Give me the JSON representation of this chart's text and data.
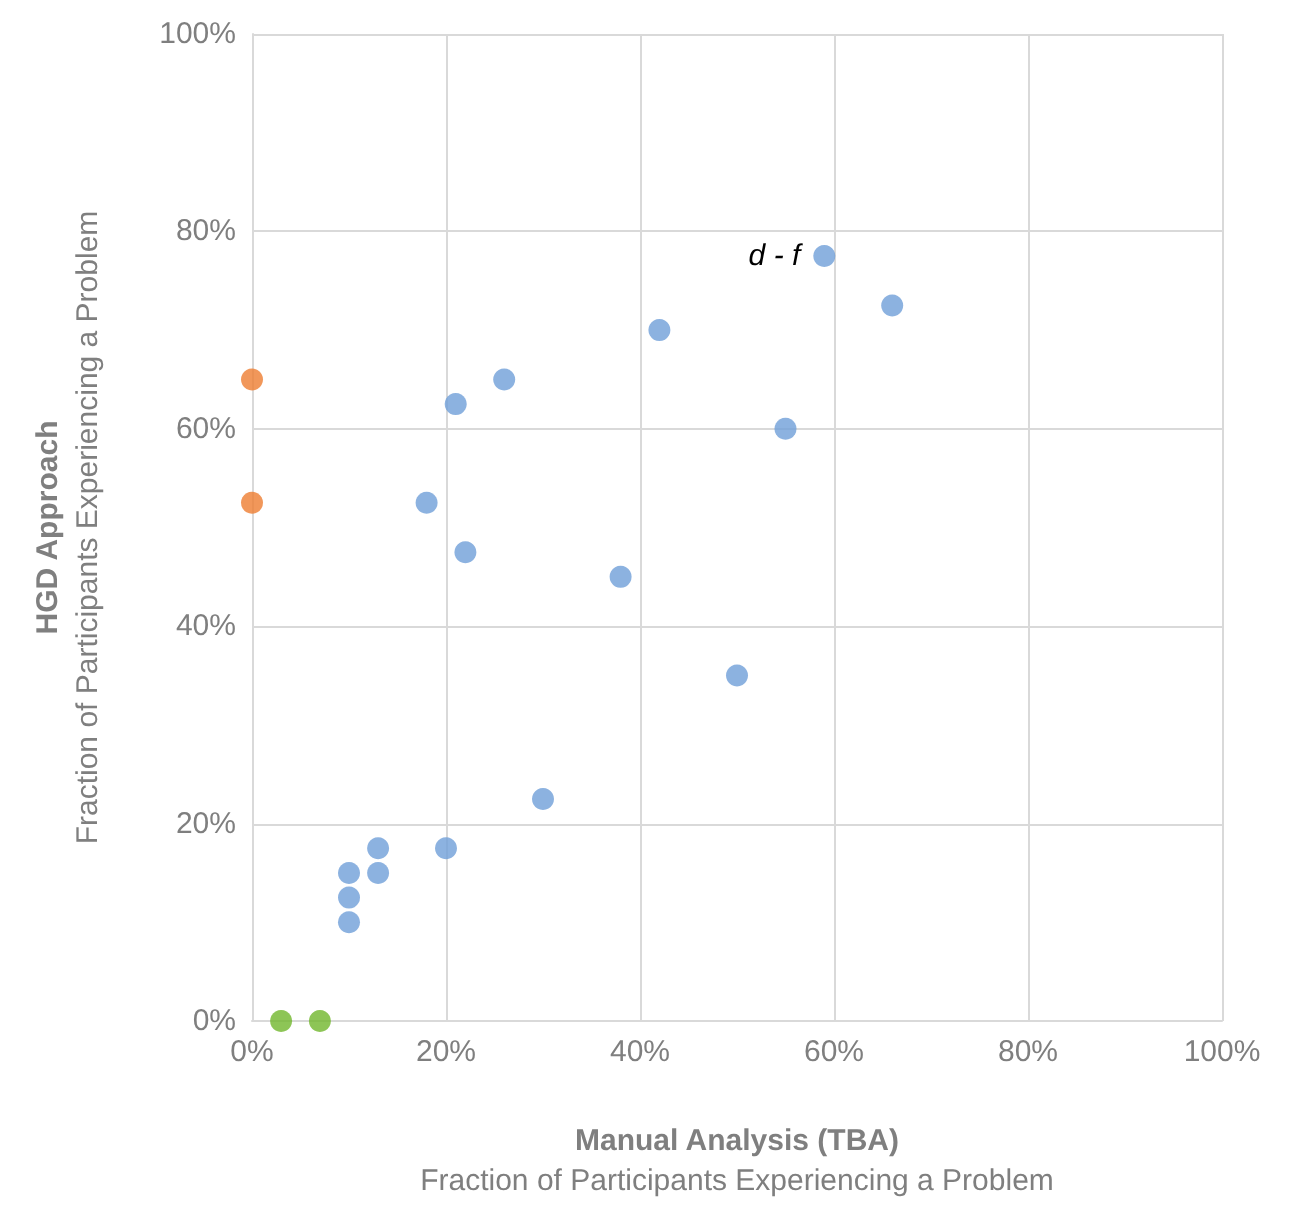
{
  "chart_data": {
    "type": "scatter",
    "xlabel": "Manual Analysis (TBA)\nFraction of Participants Experiencing a Problem",
    "ylabel": "HGD Approach\nFraction of Participants Experiencing a Problem",
    "series": [
      {
        "color": "#6f9fd8",
        "x": [
          59,
          66,
          42,
          26,
          21,
          55,
          18,
          22,
          38,
          50,
          30,
          13,
          20,
          10,
          13,
          10,
          10
        ],
        "values": [
          77.5,
          72.5,
          70,
          65,
          62.5,
          60,
          52.5,
          47.5,
          45,
          35,
          22.5,
          17.5,
          17.5,
          15,
          15,
          12.5,
          10
        ]
      },
      {
        "color": "#ed7d31",
        "x": [
          0,
          0
        ],
        "values": [
          65,
          52.5
        ]
      },
      {
        "color": "#70b62c",
        "x": [
          3,
          7
        ],
        "values": [
          0,
          0
        ]
      }
    ],
    "annotations": [
      {
        "text": "d - f",
        "x": 59,
        "y": 77.5
      }
    ],
    "xlim": [
      0,
      100
    ],
    "xticks": [
      {
        "value": 0,
        "label": "0%"
      },
      {
        "value": 20,
        "label": "20%"
      },
      {
        "value": 40,
        "label": "40%"
      },
      {
        "value": 60,
        "label": "60%"
      },
      {
        "value": 80,
        "label": "80%"
      },
      {
        "value": 100,
        "label": "100%"
      }
    ],
    "ylim": [
      0,
      100
    ],
    "yticks": [
      {
        "value": 0,
        "label": "0%"
      },
      {
        "value": 20,
        "label": "20%"
      },
      {
        "value": 40,
        "label": "40%"
      },
      {
        "value": 60,
        "label": "60%"
      },
      {
        "value": 80,
        "label": "80%"
      },
      {
        "value": 100,
        "label": "100%"
      }
    ],
    "grid": true,
    "marker": "circle"
  }
}
